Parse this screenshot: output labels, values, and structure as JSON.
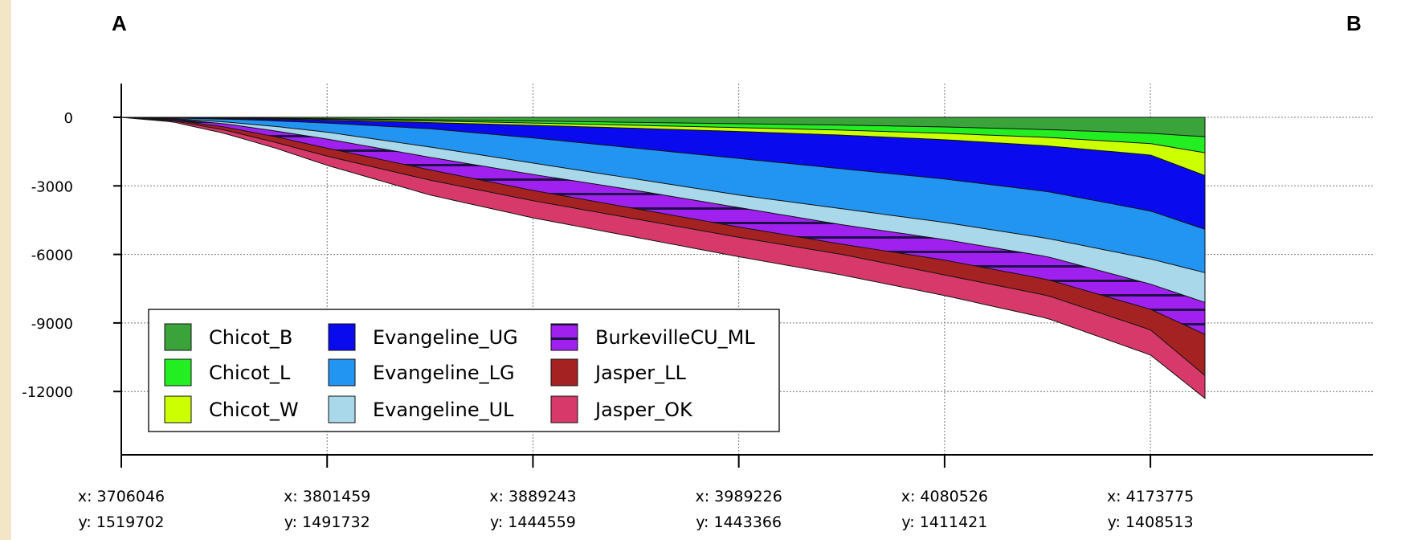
{
  "chart_data": {
    "type": "area",
    "corner_labels": {
      "left": "A",
      "right": "B"
    },
    "xtick_labels": [
      {
        "x": "x: 3706046",
        "y": "y: 1519702"
      },
      {
        "x": "x: 3801459",
        "y": "y: 1491732"
      },
      {
        "x": "x: 3889243",
        "y": "y: 1444559"
      },
      {
        "x": "x: 3989226",
        "y": "y: 1443366"
      },
      {
        "x": "x: 4080526",
        "y": "y: 1411421"
      },
      {
        "x": "x: 4173775",
        "y": "y: 1408513"
      }
    ],
    "yticks": [
      0,
      -3000,
      -6000,
      -9000,
      -12000
    ],
    "ytick_labels": [
      "0",
      "-3000",
      "-6000",
      "-9000",
      "-12000"
    ],
    "ylim": [
      -14500,
      1400
    ],
    "xlim": [
      0,
      1.053
    ],
    "grid": true,
    "legend_position": "bottom-left",
    "legend_columns": 3,
    "series": [
      {
        "name": "Chicot_B",
        "color": "#3aa33a",
        "pattern": "solid",
        "x": [
          0,
          0.05,
          0.12,
          0.2,
          0.3,
          0.4,
          0.5,
          0.6,
          0.7,
          0.8,
          0.9,
          1.0,
          1.053
        ],
        "y": [
          0,
          -10,
          -30,
          -60,
          -110,
          -160,
          -220,
          -280,
          -340,
          -420,
          -540,
          -700,
          -850
        ]
      },
      {
        "name": "Chicot_L",
        "color": "#22ee22",
        "pattern": "solid",
        "x": [
          0,
          0.05,
          0.12,
          0.2,
          0.3,
          0.4,
          0.5,
          0.6,
          0.7,
          0.8,
          0.9,
          1.0,
          1.053
        ],
        "y": [
          0,
          -15,
          -45,
          -90,
          -160,
          -250,
          -350,
          -450,
          -560,
          -700,
          -880,
          -1150,
          -1550
        ]
      },
      {
        "name": "Chicot_W",
        "color": "#ccff00",
        "pattern": "solid",
        "x": [
          0,
          0.05,
          0.12,
          0.2,
          0.3,
          0.4,
          0.5,
          0.6,
          0.7,
          0.8,
          0.9,
          1.0,
          1.053
        ],
        "y": [
          0,
          -20,
          -60,
          -130,
          -230,
          -350,
          -480,
          -620,
          -780,
          -980,
          -1250,
          -1650,
          -2550
        ]
      },
      {
        "name": "Evangeline_UG",
        "color": "#0a0aee",
        "pattern": "solid",
        "x": [
          0,
          0.05,
          0.12,
          0.2,
          0.3,
          0.4,
          0.5,
          0.6,
          0.7,
          0.8,
          0.9,
          1.0,
          1.053
        ],
        "y": [
          0,
          -30,
          -100,
          -250,
          -500,
          -900,
          -1350,
          -1800,
          -2250,
          -2700,
          -3250,
          -4100,
          -4900
        ]
      },
      {
        "name": "Evangeline_LG",
        "color": "#2294f2",
        "pattern": "solid",
        "x": [
          0,
          0.05,
          0.1,
          0.15,
          0.2,
          0.3,
          0.4,
          0.5,
          0.6,
          0.7,
          0.8,
          0.9,
          1.0,
          1.053
        ],
        "y": [
          0,
          -60,
          -200,
          -400,
          -650,
          -1300,
          -2000,
          -2700,
          -3400,
          -4000,
          -4600,
          -5300,
          -6200,
          -6800
        ]
      },
      {
        "name": "Evangeline_UL",
        "color": "#a9d8ea",
        "pattern": "solid",
        "x": [
          0,
          0.05,
          0.1,
          0.15,
          0.2,
          0.3,
          0.4,
          0.5,
          0.6,
          0.7,
          0.8,
          0.9,
          1.0,
          1.053
        ],
        "y": [
          0,
          -80,
          -280,
          -600,
          -950,
          -1750,
          -2500,
          -3200,
          -3950,
          -4700,
          -5350,
          -6100,
          -7300,
          -8100
        ]
      },
      {
        "name": "BurkevilleCU_ML",
        "color": "#a020f0",
        "pattern": "hatch",
        "x": [
          0,
          0.05,
          0.1,
          0.15,
          0.2,
          0.3,
          0.4,
          0.5,
          0.6,
          0.7,
          0.8,
          0.9,
          1.0,
          1.053
        ],
        "y": [
          0,
          -120,
          -420,
          -850,
          -1350,
          -2300,
          -3200,
          -4000,
          -4800,
          -5550,
          -6250,
          -7100,
          -8400,
          -9500
        ]
      },
      {
        "name": "Jasper_LL",
        "color": "#a52222",
        "pattern": "solid",
        "x": [
          0,
          0.05,
          0.1,
          0.15,
          0.2,
          0.3,
          0.4,
          0.5,
          0.6,
          0.7,
          0.8,
          0.9,
          1.0,
          1.053
        ],
        "y": [
          0,
          -150,
          -550,
          -1100,
          -1700,
          -2750,
          -3650,
          -4450,
          -5250,
          -6000,
          -6900,
          -7800,
          -9300,
          -11300
        ]
      },
      {
        "name": "Jasper_OK",
        "color": "#d73a6a",
        "pattern": "solid",
        "x": [
          0,
          0.05,
          0.1,
          0.15,
          0.2,
          0.3,
          0.4,
          0.5,
          0.6,
          0.7,
          0.8,
          0.9,
          1.0,
          1.053
        ],
        "y": [
          0,
          -200,
          -700,
          -1350,
          -2100,
          -3400,
          -4400,
          -5250,
          -6100,
          -6900,
          -7800,
          -8800,
          -10400,
          -12300
        ]
      }
    ]
  }
}
